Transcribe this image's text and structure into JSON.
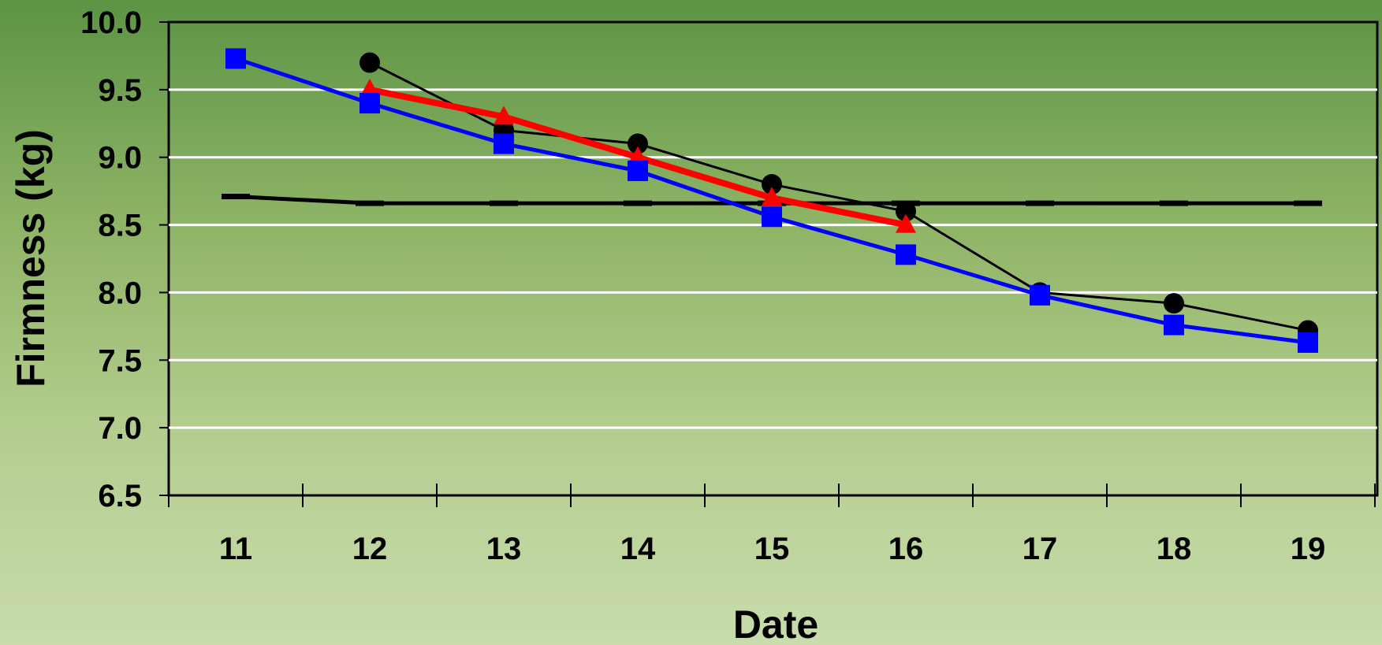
{
  "chart_data": {
    "type": "line",
    "xlabel": "Date",
    "ylabel": "Firmness (kg)",
    "categories": [
      "11",
      "12",
      "13",
      "14",
      "15",
      "16",
      "17",
      "18",
      "19"
    ],
    "ylim": [
      6.5,
      10.0
    ],
    "yticks": [
      "6.5",
      "7.0",
      "7.5",
      "8.0",
      "8.5",
      "9.0",
      "9.5",
      "10.0"
    ],
    "grid": "horizontal",
    "legend": "none",
    "series": [
      {
        "marker": "circle",
        "color": "#000000",
        "values": [
          null,
          9.7,
          9.2,
          9.1,
          8.8,
          8.6,
          8.0,
          7.92,
          7.72
        ]
      },
      {
        "marker": "square",
        "color": "#0000ff",
        "values": [
          9.73,
          9.4,
          9.1,
          8.9,
          8.56,
          8.28,
          7.98,
          7.76,
          7.63
        ]
      },
      {
        "marker": "triangle",
        "color": "#ff0000",
        "values": [
          null,
          9.5,
          9.3,
          9.0,
          8.7,
          8.5,
          null,
          null,
          null
        ]
      },
      {
        "marker": "dash",
        "color": "#000000",
        "values": [
          8.71,
          8.66,
          8.66,
          8.66,
          8.66,
          8.66,
          8.66,
          8.66,
          8.66
        ]
      }
    ]
  }
}
